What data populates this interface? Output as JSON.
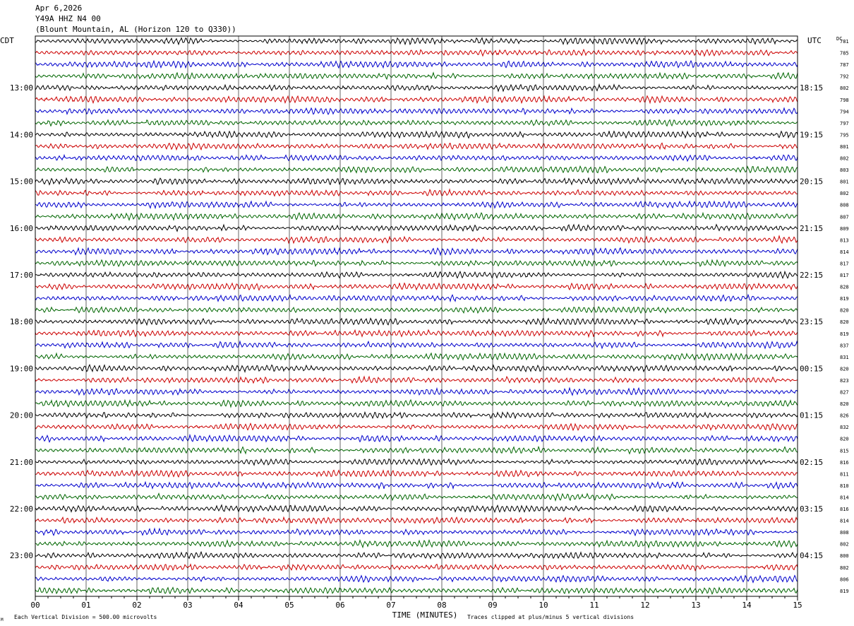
{
  "header": {
    "date": "Apr 6,2026",
    "channel": "Y49A HHZ N4 00",
    "location": "(Blount Mountain, AL (Horizon 120 to Q330))"
  },
  "left_axis_label": "CDT",
  "right_axis_label": "UTC",
  "dc_label": "DC",
  "footer": {
    "scale": "Each Vertical Division =  500.00 microvolts",
    "clip": "Traces clipped at plus/minus 5 vertical divisions",
    "corner_mark": "M"
  },
  "colors": {
    "cycle": [
      "#000000",
      "#cc0000",
      "#0000cc",
      "#006600"
    ],
    "grid": "#000000"
  },
  "chart_data": {
    "type": "line",
    "title": "",
    "xlabel": "TIME (MINUTES)",
    "ylabel": "",
    "xlim": [
      0,
      15
    ],
    "x_ticks": [
      "00",
      "01",
      "02",
      "03",
      "04",
      "05",
      "06",
      "07",
      "08",
      "09",
      "10",
      "11",
      "12",
      "13",
      "14",
      "15"
    ],
    "traces_per_hour": 4,
    "local_hour_labels": [
      "13:00",
      "14:00",
      "15:00",
      "16:00",
      "17:00",
      "18:00",
      "19:00",
      "20:00",
      "21:00",
      "22:00",
      "23:00"
    ],
    "utc_hour_labels": [
      "18:15",
      "19:15",
      "20:15",
      "21:15",
      "22:15",
      "23:15",
      "00:15",
      "01:15",
      "02:15",
      "03:15",
      "04:15"
    ],
    "dc_offsets": [
      781,
      785,
      787,
      792,
      802,
      798,
      794,
      797,
      795,
      801,
      802,
      803,
      801,
      802,
      808,
      807,
      809,
      813,
      814,
      817,
      817,
      828,
      819,
      820,
      820,
      819,
      837,
      831,
      820,
      823,
      827,
      820,
      826,
      832,
      820,
      815,
      816,
      811,
      810,
      814,
      816,
      814,
      808,
      802,
      800,
      802,
      806,
      819
    ]
  }
}
